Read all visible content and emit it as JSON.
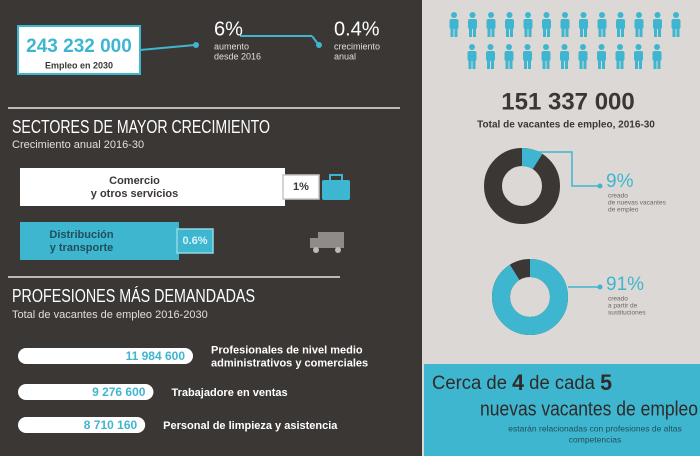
{
  "header": {
    "total": "243 232 000",
    "total_label": "Empleo en 2030",
    "stats": [
      {
        "value": "6%",
        "label": [
          "aumento",
          "desde 2016"
        ]
      },
      {
        "value": "0.4%",
        "label": [
          "crecimiento",
          "anual"
        ]
      }
    ]
  },
  "sectors": {
    "title": "SECTORES DE MAYOR CRECIMIENTO",
    "subtitle": "Crecimiento anual 2016-30",
    "items": [
      {
        "name": [
          "Comercio",
          "y otros servicios"
        ],
        "value": 1,
        "value_label": "1%"
      },
      {
        "name": [
          "Distribución",
          "y transporte"
        ],
        "value": 0.6,
        "value_label": "0.6%"
      }
    ]
  },
  "professions": {
    "title": "PROFESIONES MÁS DEMANDADAS",
    "subtitle": "Total de vacantes de empleo 2016-2030",
    "items": [
      {
        "value": 11984600,
        "value_label": "11 984 600",
        "name": [
          "Profesionales de nivel medio",
          "administrativos y comerciales"
        ]
      },
      {
        "value": 9276600,
        "value_label": "9 276 600",
        "name": [
          "Trabajadore en ventas"
        ]
      },
      {
        "value": 8710160,
        "value_label": "8 710 160",
        "name": [
          "Personal de limpieza y asistencia"
        ]
      }
    ]
  },
  "vacancies": {
    "total": "151 337 000",
    "label": "Total de vacantes de empleo, 2016-30"
  },
  "donuts": [
    {
      "value": 9,
      "value_label": "9%",
      "caption": [
        "creado",
        "de nuevas vacantes",
        "de empleo"
      ]
    },
    {
      "value": 91,
      "value_label": "91%",
      "caption": [
        "creado",
        "a partir de",
        "sustituciones"
      ]
    }
  ],
  "banner": {
    "line1": [
      "Cerca de ",
      "4",
      " de cada ",
      "5"
    ],
    "line2": "nuevas vacantes de empleo",
    "caption": [
      "estarán relacionadas con profesiones de altas",
      "competencias"
    ]
  }
}
